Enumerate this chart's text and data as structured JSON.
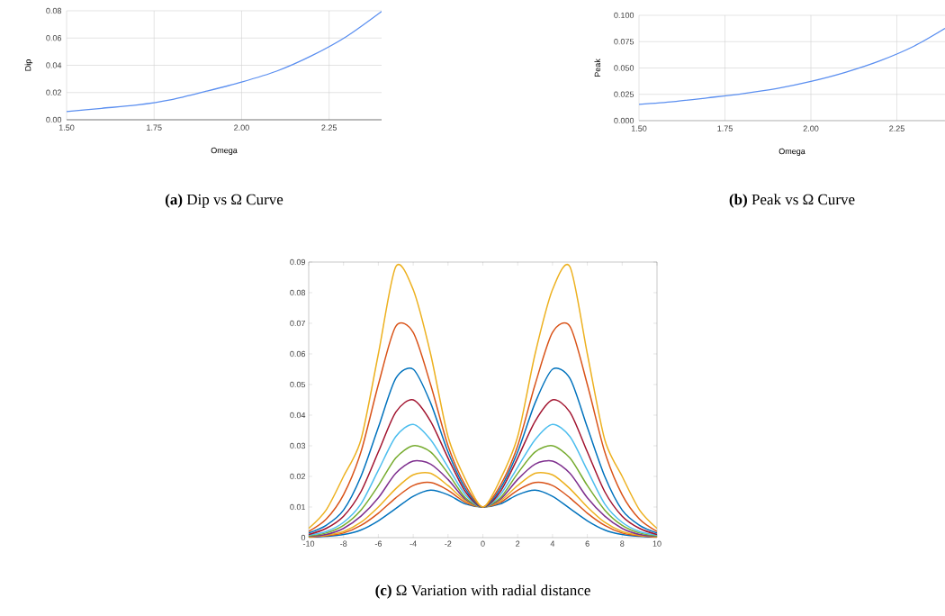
{
  "chart_data": [
    {
      "type": "line",
      "title": "**(a)** Dip vs Ω Curve",
      "xlabel": "Omega",
      "ylabel": "Dip",
      "x": [
        1.5,
        1.6,
        1.7,
        1.8,
        1.9,
        2.0,
        2.1,
        2.2,
        2.3,
        2.4
      ],
      "series": [
        {
          "color": "#5b8ff0",
          "values": [
            0.006,
            0.0084,
            0.0108,
            0.0148,
            0.021,
            0.0277,
            0.0357,
            0.047,
            0.0612,
            0.0795
          ]
        }
      ],
      "xlim": [
        1.5,
        2.4
      ],
      "ylim": [
        0,
        0.08
      ],
      "xticks": [
        {
          "value": 1.5,
          "label": "1.50"
        },
        {
          "value": 1.75,
          "label": "1.75"
        },
        {
          "value": 2.0,
          "label": "2.00"
        },
        {
          "value": 2.25,
          "label": "2.25"
        }
      ],
      "yticks": [
        {
          "value": 0,
          "label": "0.00"
        },
        {
          "value": 0.02,
          "label": "0.02"
        },
        {
          "value": 0.04,
          "label": "0.04"
        },
        {
          "value": 0.06,
          "label": "0.06"
        },
        {
          "value": 0.08,
          "label": "0.08"
        }
      ],
      "grid": true
    },
    {
      "type": "line",
      "title": "**(b)** Peak vs Ω Curve",
      "xlabel": "Omega",
      "ylabel": "Peak",
      "x": [
        1.5,
        1.6,
        1.7,
        1.8,
        1.9,
        2.0,
        2.1,
        2.2,
        2.3,
        2.39
      ],
      "series": [
        {
          "color": "#5b8ff0",
          "values": [
            0.0154,
            0.018,
            0.0217,
            0.0256,
            0.0305,
            0.0373,
            0.0459,
            0.0567,
            0.0707,
            0.0875
          ]
        }
      ],
      "xlim": [
        1.5,
        2.39
      ],
      "ylim": [
        0,
        0.1
      ],
      "xticks": [
        {
          "value": 1.5,
          "label": "1.50"
        },
        {
          "value": 1.75,
          "label": "1.75"
        },
        {
          "value": 2.0,
          "label": "2.00"
        },
        {
          "value": 2.25,
          "label": "2.25"
        }
      ],
      "yticks": [
        {
          "value": 0,
          "label": "0.000"
        },
        {
          "value": 0.025,
          "label": "0.025"
        },
        {
          "value": 0.05,
          "label": "0.050"
        },
        {
          "value": 0.075,
          "label": "0.075"
        },
        {
          "value": 0.1,
          "label": "0.100"
        }
      ],
      "grid": true
    },
    {
      "type": "line",
      "title": "**(c)** Ω Variation with radial distance",
      "x": [
        -10,
        -9,
        -8,
        -7,
        -6,
        -5,
        -4,
        -3,
        -2,
        -1,
        0,
        1,
        2,
        3,
        4,
        5,
        6,
        7,
        8,
        9,
        10
      ],
      "series": [
        {
          "color": "#0072bd",
          "values": [
            0.0001,
            0.0004,
            0.001,
            0.0025,
            0.0055,
            0.0095,
            0.0135,
            0.0155,
            0.014,
            0.011,
            0.01,
            0.011,
            0.014,
            0.0155,
            0.0135,
            0.0095,
            0.0055,
            0.0025,
            0.001,
            0.0004,
            0.0001
          ]
        },
        {
          "color": "#d95319",
          "values": [
            0.0002,
            0.0006,
            0.0015,
            0.004,
            0.008,
            0.013,
            0.017,
            0.018,
            0.0155,
            0.0115,
            0.01,
            0.0115,
            0.0155,
            0.018,
            0.017,
            0.013,
            0.008,
            0.004,
            0.0015,
            0.0006,
            0.0002
          ]
        },
        {
          "color": "#edb120",
          "values": [
            0.0003,
            0.0008,
            0.002,
            0.005,
            0.01,
            0.016,
            0.0205,
            0.021,
            0.017,
            0.012,
            0.01,
            0.012,
            0.017,
            0.021,
            0.0205,
            0.016,
            0.01,
            0.005,
            0.002,
            0.0008,
            0.0003
          ]
        },
        {
          "color": "#7e2f8e",
          "values": [
            0.0004,
            0.001,
            0.003,
            0.007,
            0.013,
            0.021,
            0.025,
            0.024,
            0.019,
            0.0125,
            0.01,
            0.0125,
            0.019,
            0.024,
            0.025,
            0.021,
            0.013,
            0.007,
            0.003,
            0.001,
            0.0004
          ]
        },
        {
          "color": "#77ac30",
          "values": [
            0.0005,
            0.0015,
            0.004,
            0.009,
            0.017,
            0.026,
            0.03,
            0.028,
            0.021,
            0.013,
            0.01,
            0.013,
            0.021,
            0.028,
            0.03,
            0.026,
            0.017,
            0.009,
            0.004,
            0.0015,
            0.0005
          ]
        },
        {
          "color": "#4dbeee",
          "values": [
            0.0008,
            0.002,
            0.005,
            0.011,
            0.022,
            0.033,
            0.037,
            0.032,
            0.023,
            0.014,
            0.01,
            0.014,
            0.023,
            0.032,
            0.037,
            0.033,
            0.022,
            0.011,
            0.005,
            0.002,
            0.0008
          ]
        },
        {
          "color": "#a2142f",
          "values": [
            0.001,
            0.003,
            0.007,
            0.015,
            0.028,
            0.041,
            0.045,
            0.038,
            0.026,
            0.015,
            0.01,
            0.015,
            0.026,
            0.038,
            0.045,
            0.041,
            0.028,
            0.015,
            0.007,
            0.003,
            0.001
          ]
        },
        {
          "color": "#0072bd",
          "values": [
            0.0015,
            0.004,
            0.009,
            0.02,
            0.036,
            0.052,
            0.055,
            0.044,
            0.028,
            0.016,
            0.01,
            0.016,
            0.028,
            0.044,
            0.055,
            0.052,
            0.036,
            0.02,
            0.009,
            0.004,
            0.0015
          ]
        },
        {
          "color": "#d95319",
          "values": [
            0.002,
            0.006,
            0.014,
            0.028,
            0.05,
            0.069,
            0.067,
            0.05,
            0.03,
            0.017,
            0.01,
            0.017,
            0.03,
            0.05,
            0.067,
            0.069,
            0.05,
            0.028,
            0.014,
            0.006,
            0.002
          ]
        },
        {
          "color": "#edb120",
          "values": [
            0.003,
            0.009,
            0.02,
            0.032,
            0.06,
            0.0885,
            0.081,
            0.06,
            0.033,
            0.019,
            0.01,
            0.019,
            0.033,
            0.06,
            0.081,
            0.0885,
            0.06,
            0.032,
            0.02,
            0.009,
            0.003
          ]
        }
      ],
      "xlim": [
        -10,
        10
      ],
      "ylim": [
        0,
        0.09
      ],
      "xticks": [
        -10,
        -8,
        -6,
        -4,
        -2,
        0,
        2,
        4,
        6,
        8,
        10
      ],
      "yticks": [
        0,
        0.01,
        0.02,
        0.03,
        0.04,
        0.05,
        0.06,
        0.07,
        0.08,
        0.09
      ]
    }
  ]
}
